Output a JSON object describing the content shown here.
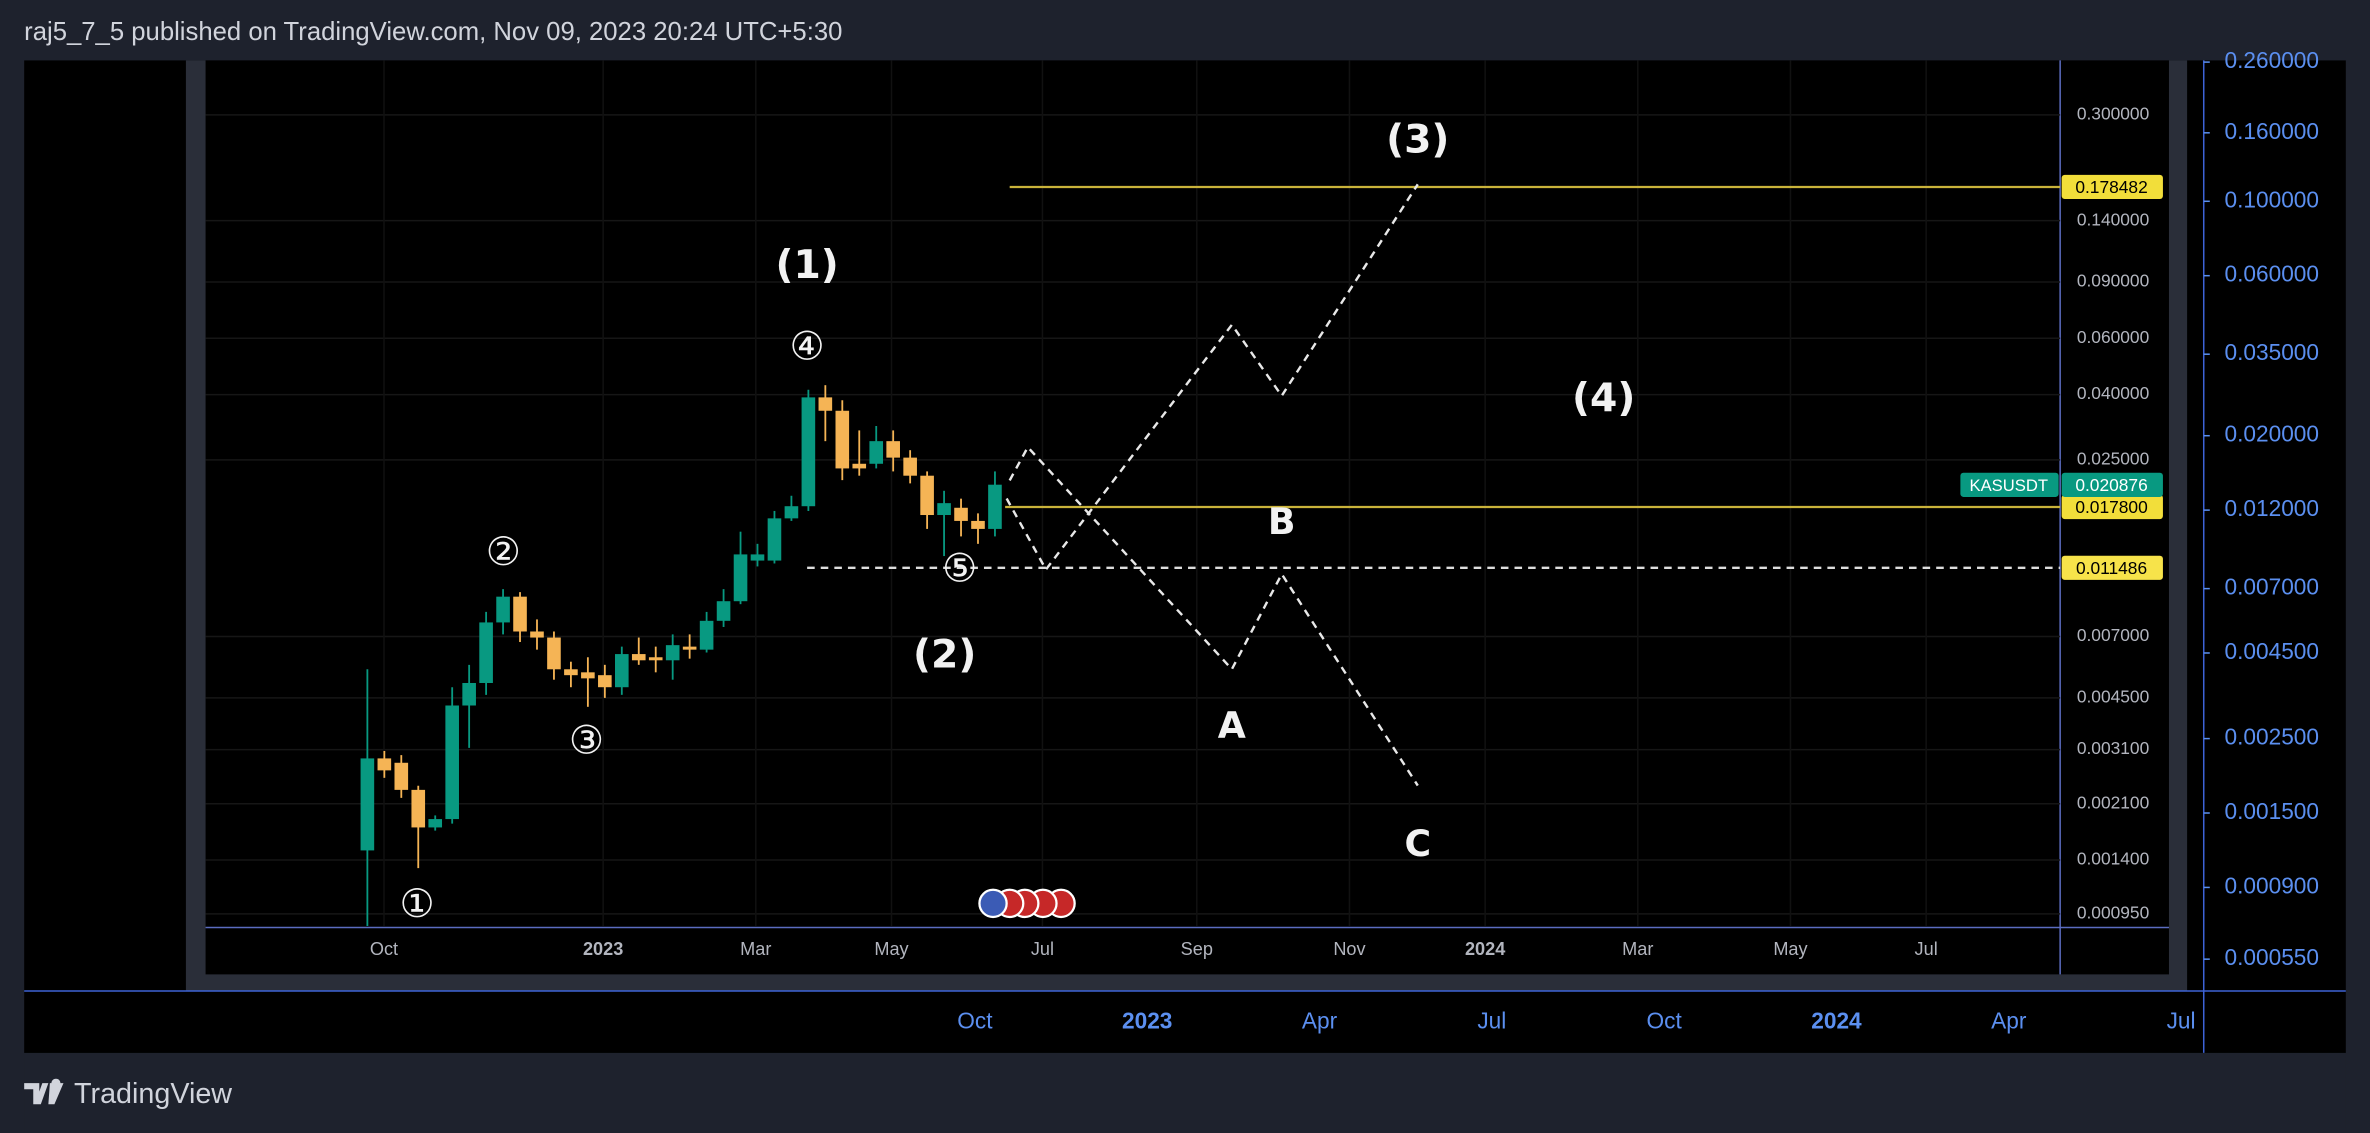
{
  "header": {
    "text": "raj5_7_5 published on TradingView.com, Nov 09, 2023 20:24 UTC+5:30"
  },
  "footer": {
    "brand": "TradingView"
  },
  "chart_data": [
    {
      "type": "candlestick",
      "log_scale": true,
      "grid": true,
      "up_color": "#089981",
      "down_color": "#f5b455",
      "xlim": [
        -9.54,
        99.8
      ],
      "ylim": [
        0.00087,
        0.444
      ],
      "open": [
        0.0015,
        0.00291,
        0.00282,
        0.00232,
        0.00177,
        0.00188,
        0.00426,
        0.00501,
        0.00775,
        0.00933,
        0.00726,
        0.00695,
        0.00553,
        0.00541,
        0.0053,
        0.00486,
        0.00617,
        0.00603,
        0.0059,
        0.00651,
        0.00637,
        0.00784,
        0.00903,
        0.0121,
        0.0121,
        0.0164,
        0.0179,
        0.0392,
        0.0356,
        0.0243,
        0.0243,
        0.0286,
        0.0254,
        0.0223,
        0.0168,
        0.0177,
        0.0161,
        0.0152
      ],
      "high": [
        0.00553,
        0.00307,
        0.00298,
        0.00239,
        0.00193,
        0.00486,
        0.00571,
        0.00836,
        0.00985,
        0.00964,
        0.00792,
        0.00726,
        0.00584,
        0.00603,
        0.00571,
        0.00651,
        0.00695,
        0.00651,
        0.00711,
        0.00711,
        0.00836,
        0.00985,
        0.0149,
        0.01365,
        0.0173,
        0.0193,
        0.0414,
        0.0428,
        0.0384,
        0.0309,
        0.0319,
        0.0309,
        0.0268,
        0.023,
        0.02,
        0.0189,
        0.017,
        0.023
      ],
      "low": [
        0.00087,
        0.00253,
        0.00219,
        0.00132,
        0.00173,
        0.00182,
        0.00314,
        0.0046,
        0.00711,
        0.00673,
        0.00637,
        0.00513,
        0.00486,
        0.00422,
        0.0045,
        0.0046,
        0.00571,
        0.00541,
        0.00513,
        0.00597,
        0.00624,
        0.0075,
        0.00884,
        0.0116,
        0.01185,
        0.0161,
        0.0173,
        0.0286,
        0.0216,
        0.0223,
        0.0235,
        0.023,
        0.0211,
        0.0152,
        0.0125,
        0.0144,
        0.01365,
        0.0144
      ],
      "close": [
        0.00291,
        0.00267,
        0.00232,
        0.00177,
        0.00188,
        0.00426,
        0.00501,
        0.00775,
        0.00933,
        0.00726,
        0.00695,
        0.00553,
        0.0053,
        0.00518,
        0.00486,
        0.00617,
        0.0059,
        0.0059,
        0.00658,
        0.00637,
        0.00784,
        0.00903,
        0.01265,
        0.01265,
        0.0164,
        0.0179,
        0.0392,
        0.0356,
        0.0235,
        0.0235,
        0.0286,
        0.0254,
        0.0223,
        0.0168,
        0.0183,
        0.0161,
        0.0152,
        0.0209
      ],
      "yticks": [
        {
          "value": 0.3,
          "label": "0.300000"
        },
        {
          "value": 0.14,
          "label": "0.140000"
        },
        {
          "value": 0.09,
          "label": "0.090000"
        },
        {
          "value": 0.06,
          "label": "0.060000"
        },
        {
          "value": 0.04,
          "label": "0.040000"
        },
        {
          "value": 0.025,
          "label": "0.025000"
        },
        {
          "value": 0.007,
          "label": "0.007000"
        },
        {
          "value": 0.0045,
          "label": "0.004500"
        },
        {
          "value": 0.0031,
          "label": "0.003100"
        },
        {
          "value": 0.0021,
          "label": "0.002100"
        },
        {
          "value": 0.0014,
          "label": "0.001400"
        },
        {
          "value": 0.00095,
          "label": "0.000950"
        }
      ],
      "xticks": [
        {
          "value": 0.98,
          "label": "Oct"
        },
        {
          "value": 13.9,
          "label": "2023"
        },
        {
          "value": 22.9,
          "label": "Mar"
        },
        {
          "value": 30.9,
          "label": "May"
        },
        {
          "value": 39.8,
          "label": "Jul"
        },
        {
          "value": 48.9,
          "label": "Sep"
        },
        {
          "value": 57.9,
          "label": "Nov"
        },
        {
          "value": 65.9,
          "label": "2024"
        },
        {
          "value": 74.9,
          "label": "Mar"
        },
        {
          "value": 83.9,
          "label": "May"
        },
        {
          "value": 91.9,
          "label": "Jul"
        }
      ],
      "levels": [
        {
          "value": 0.178482,
          "label": "0.178482",
          "color": "#c9b33a",
          "dashed": false
        },
        {
          "value": 0.0178,
          "label": "0.017800",
          "color": "#c9b33a",
          "dashed": false
        },
        {
          "value": 0.011486,
          "label": "0.011486",
          "color": "#dddddd",
          "dashed": true
        }
      ],
      "last_price": {
        "symbol": "KASUSDT",
        "value": 0.020876,
        "label": "0.020876",
        "color": "#089981"
      },
      "annotations": [
        "(1)",
        "(2)",
        "(3)",
        "(4)",
        "A",
        "B",
        "C",
        "①",
        "②",
        "③",
        "④",
        "⑤"
      ]
    },
    {
      "type": "axes",
      "log_scale": true,
      "color": "#5b8ff0",
      "ylim": [
        0.000442,
        0.263
      ],
      "yticks": [
        {
          "value": 0.26,
          "label": "0.260000"
        },
        {
          "value": 0.16,
          "label": "0.160000"
        },
        {
          "value": 0.1,
          "label": "0.100000"
        },
        {
          "value": 0.06,
          "label": "0.060000"
        },
        {
          "value": 0.035,
          "label": "0.035000"
        },
        {
          "value": 0.02,
          "label": "0.020000"
        },
        {
          "value": 0.012,
          "label": "0.012000"
        },
        {
          "value": 0.007,
          "label": "0.007000"
        },
        {
          "value": 0.0045,
          "label": "0.004500"
        },
        {
          "value": 0.0025,
          "label": "0.002500"
        },
        {
          "value": 0.0015,
          "label": "0.001500"
        },
        {
          "value": 0.0009,
          "label": "0.000900"
        },
        {
          "value": 0.00055,
          "label": "0.000550"
        }
      ],
      "x_labels": [
        "Oct",
        "2023",
        "Apr",
        "Jul",
        "Oct",
        "2024",
        "Apr",
        "Jul"
      ]
    }
  ]
}
